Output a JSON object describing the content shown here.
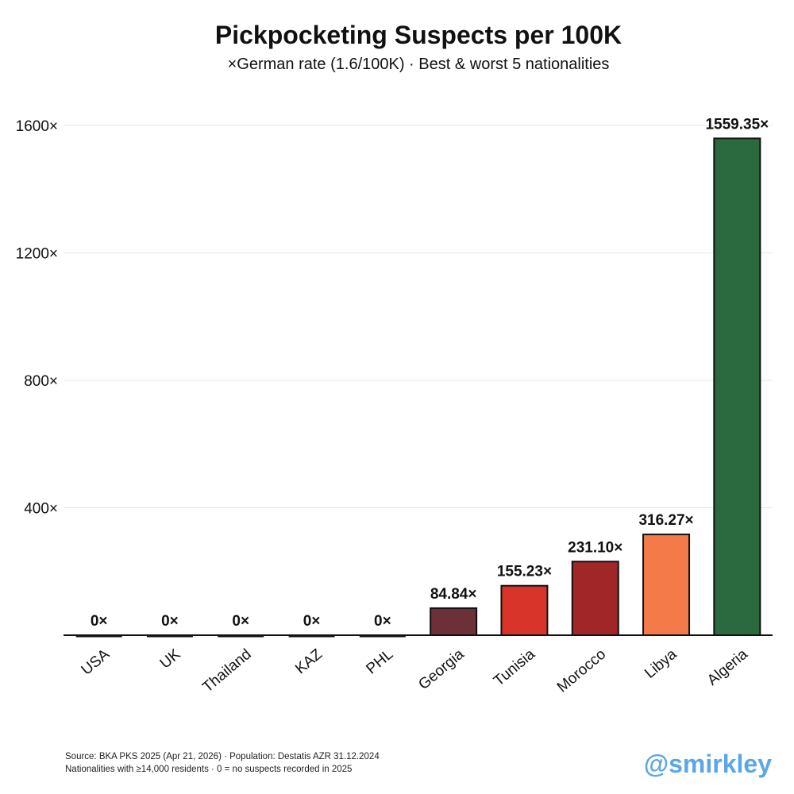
{
  "chart_data": {
    "type": "bar",
    "title": "Pickpocketing Suspects per 100K",
    "subtitle": "×German rate (1.6/100K) · Best & worst 5 nationalities",
    "xlabel": "",
    "ylabel": "",
    "ylim": [
      0,
      1600
    ],
    "yticks": [
      400,
      800,
      1200,
      1600
    ],
    "ytick_labels": [
      "400×",
      "800×",
      "1200×",
      "1600×"
    ],
    "grid": true,
    "categories": [
      "USA",
      "UK",
      "Thailand",
      "KAZ",
      "PHL",
      "Georgia",
      "Tunisia",
      "Morocco",
      "Libya",
      "Algeria"
    ],
    "values": [
      0,
      0,
      0,
      0,
      0,
      84.84,
      155.23,
      231.1,
      316.27,
      1559.35
    ],
    "value_labels": [
      "0×",
      "0×",
      "0×",
      "0×",
      "0×",
      "84.84×",
      "155.23×",
      "231.10×",
      "316.27×",
      "1559.35×"
    ],
    "colors": [
      "#1a1a1a",
      "#1a1a1a",
      "#1a1a1a",
      "#1a1a1a",
      "#1a1a1a",
      "#6b3038",
      "#d93429",
      "#a02628",
      "#f47a4a",
      "#2b6a3e"
    ]
  },
  "footer": {
    "source": "Source: BKA PKS 2025 (Apr 21, 2026) · Population: Destatis AZR 31.12.2024",
    "note": "Nationalities with ≥14,000 residents · 0 = no suspects recorded in 2025"
  },
  "watermark": "@smirkley"
}
